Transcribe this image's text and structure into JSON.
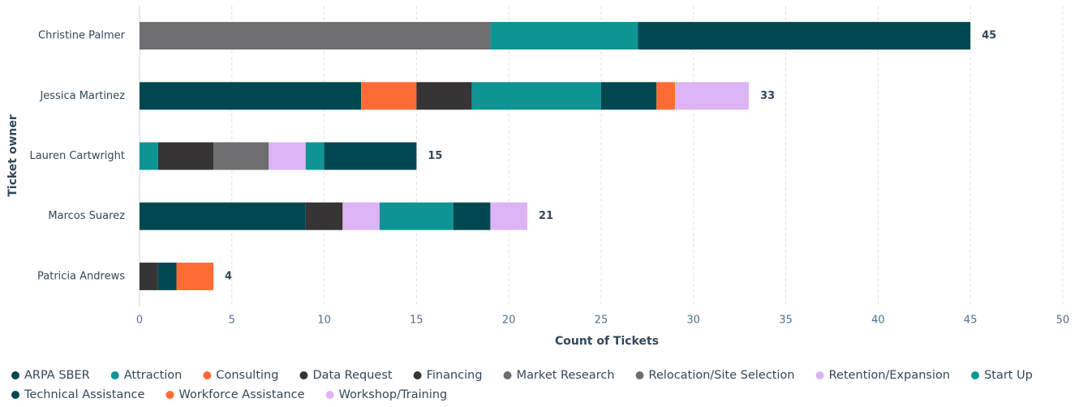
{
  "chart_data": {
    "type": "stacked_bar_horizontal",
    "x_label": "Count of Tickets",
    "y_label": "Ticket owner",
    "categories": [
      "Christine Palmer",
      "Jessica Martinez",
      "Lauren Cartwright",
      "Marcos Suarez",
      "Patricia Andrews"
    ],
    "totals": [
      45,
      33,
      15,
      21,
      4
    ],
    "xlim": [
      0,
      50
    ],
    "xticks": [
      0,
      5,
      10,
      15,
      20,
      25,
      30,
      35,
      40,
      45,
      50
    ],
    "grid": true,
    "series": [
      {
        "name": "ARPA SBER",
        "color": "#00474f",
        "values": [
          0,
          12,
          0,
          9,
          0
        ]
      },
      {
        "name": "Attraction",
        "color": "#0f9494",
        "values": [
          0,
          0,
          1,
          0,
          0
        ]
      },
      {
        "name": "Consulting",
        "color": "#ff6b35",
        "values": [
          0,
          3,
          0,
          0,
          0
        ]
      },
      {
        "name": "Data Request",
        "color": "#363434",
        "values": [
          0,
          3,
          3,
          2,
          1
        ]
      },
      {
        "name": "Financing",
        "color": "#363434",
        "values": [
          0,
          0,
          0,
          0,
          0
        ]
      },
      {
        "name": "Market Research",
        "color": "#6e6d72",
        "values": [
          19,
          0,
          3,
          0,
          0
        ]
      },
      {
        "name": "Relocation/Site Selection",
        "color": "#6e6d72",
        "values": [
          0,
          0,
          0,
          0,
          0
        ]
      },
      {
        "name": "Retention/Expansion",
        "color": "#dcb4f5",
        "values": [
          0,
          0,
          2,
          2,
          0
        ]
      },
      {
        "name": "Start Up",
        "color": "#0f9494",
        "values": [
          8,
          7,
          1,
          4,
          0
        ]
      },
      {
        "name": "Technical Assistance",
        "color": "#00474f",
        "values": [
          18,
          3,
          5,
          2,
          1
        ]
      },
      {
        "name": "Workforce Assistance",
        "color": "#ff6b35",
        "values": [
          0,
          1,
          0,
          0,
          2
        ]
      },
      {
        "name": "Workshop/Training",
        "color": "#dcb4f5",
        "values": [
          0,
          4,
          0,
          2,
          0
        ]
      }
    ]
  }
}
